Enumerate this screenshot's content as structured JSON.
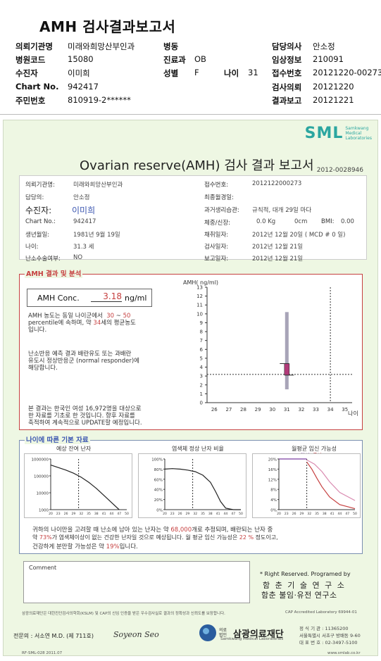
{
  "header": {
    "title": "AMH 검사결과보고서",
    "rows": [
      [
        {
          "k": "의뢰기관명",
          "v": "미래와희망산부인과"
        },
        {
          "k": "병동",
          "v": ""
        },
        {
          "k": "담당의사",
          "v": "안소정"
        }
      ],
      [
        {
          "k": "병원코드",
          "v": "15080"
        },
        {
          "k": "진료과",
          "v": "OB"
        },
        {
          "k": "임상정보",
          "v": "210091"
        }
      ],
      [
        {
          "k": "수진자",
          "v": "이미희"
        },
        {
          "k": "성별",
          "v": "F"
        },
        {
          "k": "나이",
          "v": "31"
        },
        {
          "k": "접수번호",
          "v": "20121220-00273"
        }
      ],
      [
        {
          "k": "Chart No.",
          "v": "942417"
        },
        {
          "k": "검사의뢰",
          "v": "20121220"
        }
      ],
      [
        {
          "k": "주민번호",
          "v": "810919-2******"
        },
        {
          "k": "결과보고",
          "v": "20121221"
        }
      ]
    ]
  },
  "logo": {
    "big": "SML",
    "small1": "Samkwang",
    "small2": "Medical",
    "small3": "Laboratories"
  },
  "sheet": {
    "title": "Ovarian reserve(AMH) 검사 결과 보고서",
    "report_no": "2012-0028946"
  },
  "info": {
    "institution_label": "의뢰기관명:",
    "institution": "미래와희망산부인과",
    "doctor_label": "담당의:",
    "doctor": "안소정",
    "patient_label": "수진자:",
    "patient": "이미희",
    "chart_label": "Chart No.:",
    "chart": "942417",
    "birth_label": "생년월일:",
    "birth": "1981년 9월 19일",
    "age_label": "나이:",
    "age": "31.3 세",
    "surgery_label": "난소수술여부:",
    "surgery": "NO",
    "receipt_label": "접수번호:",
    "receipt": "2012122000273",
    "lmp_label": "최종월경일:",
    "lmp": "",
    "cycle_label": "과거생리습관:",
    "cycle": "규칙적, 대개  29일 마다",
    "body_label": "체중/신장:",
    "weight": "0.0 Kg",
    "height": "0cm",
    "bmi_label": "BMI:",
    "bmi": "0.00",
    "collect_label": "채취일자:",
    "collect": "2012년 12월 20일 ( MCD #  0 일)",
    "test_label": "검사일자:",
    "test": "2012년 12월 21일",
    "report_label": "보고일자:",
    "report": "2012년 12월 21일"
  },
  "amh_section": {
    "title": "AMH 결과 및 분석",
    "conc_label": "AMH Conc.",
    "conc_value": "3.18",
    "conc_unit": "ng/ml",
    "p1_a": "AMH 농도는 동일 나이군에서",
    "p1_range_lo": "30",
    "p1_range_sep": "~",
    "p1_range_hi": "50",
    "p1_b": "percentile에 속하며, 약",
    "p1_age": "34",
    "p1_c": "세의 평균농도",
    "p1_d": "입니다.",
    "p2_a": "난소반응 예측 결과 배란유도 또는 과배란",
    "p2_b": "유도시 정상반응군 (normal responder)에",
    "p2_c": "해당합니다.",
    "p3_a": "본 결과는 한국인 여성 16,972명을 대상으로",
    "p3_b": "한 자료를 기초로 한 것입니다. 향후 자료를",
    "p3_c": "축적하여 계속적으로 UPDATE할 예정입니다."
  },
  "chart_data": [
    {
      "type": "boxplot",
      "ylabel": "AMH( ng/ml)",
      "xlabel": "나이",
      "x_ticks": [
        26,
        27,
        28,
        29,
        30,
        31,
        32,
        33,
        34,
        35
      ],
      "ylim": [
        0,
        13
      ],
      "y_ticks": [
        0,
        1,
        2,
        3,
        4,
        5,
        6,
        7,
        8,
        9,
        10,
        11,
        12,
        13
      ],
      "box": {
        "age": 31,
        "whisker_low": 1.5,
        "q1": 3.1,
        "q3": 4.4,
        "whisker_high": 10.2
      },
      "patient_value": 3.18,
      "patient_age": 31.3,
      "reference_age": 34
    },
    {
      "type": "line",
      "title": "예상 잔여 난자",
      "y_scale": "log",
      "y_ticks": [
        "1000000",
        "100000",
        "10000",
        "1000"
      ],
      "x_ticks": [
        20,
        23,
        26,
        29,
        32,
        35,
        38,
        41,
        44,
        47,
        50
      ],
      "marker_age": 31
    },
    {
      "type": "line",
      "title": "염색체 정상 난자 비율",
      "y_ticks": [
        "100%",
        "80%",
        "60%",
        "40%",
        "20%",
        "0%"
      ],
      "x_ticks": [
        20,
        23,
        26,
        29,
        32,
        35,
        38,
        41,
        44,
        47,
        50
      ],
      "marker_age": 31
    },
    {
      "type": "line",
      "title": "월평균 임신 가능성",
      "legend_pregnancy": "임신",
      "legend_birth": "출산",
      "legend_sep": "-",
      "y_ticks": [
        "20%",
        "16%",
        "12%",
        "8%",
        "4%",
        "0%"
      ],
      "x_ticks": [
        20,
        23,
        26,
        29,
        32,
        35,
        38,
        41,
        44,
        47,
        50
      ],
      "marker_age": 31
    }
  ],
  "age_section": {
    "title": "나이에 따른 기본 자료",
    "f1_a": "귀하의 나이만을 고려할 때 난소에 남아 있는 난자는 약",
    "eggs": "68,000",
    "f1_b": "개로 추정되며, 배란되는 난자 중",
    "f2_a": "약",
    "normal_pct": "73%",
    "f2_b": "가 염색체이상이 없는 건강한 난자일 것으로 예상됩니다. 월 평균 임신 가능성은",
    "preg_pct": "22 %",
    "f2_c": "정도이고,",
    "f3_a": "건강하게 분만할 가능성은 약",
    "birth_pct": "19%",
    "f3_b": "입니다."
  },
  "comment_label": "Comment",
  "program": {
    "line1": "* Right Reserved. Programed by",
    "inst1": "함 춘 기 술 연 구 소",
    "inst2": "함춘 불임·유전 연구소"
  },
  "fine_print_1": "삼광의료재단은 대한진단검사의학회(KSLM) 및 CAP의 신임 인증을 받은 우수검사실로 결과의 정확성과 신뢰도를 보장합니다.",
  "cap": "CAP  Accredited  Laboratory  69944-01",
  "doctor_line": "전문의 : 서소연 M.D. (제 711호)",
  "signature": "Soyeon Seo",
  "foundation": {
    "prefix": "의료법인",
    "name": "삼광의료재단",
    "eng": "Samkwang Medical Laboratories"
  },
  "contact": {
    "reg": "정 식 기 관 : 11365200",
    "addr1": "서울특별시 서초구 방배동 9-60",
    "tel": "대 표 번 호 : 02-3497-5100"
  },
  "bottom_code": "RF-SML-028 2011.07",
  "bottom_url": "www.smlab.co.kr"
}
